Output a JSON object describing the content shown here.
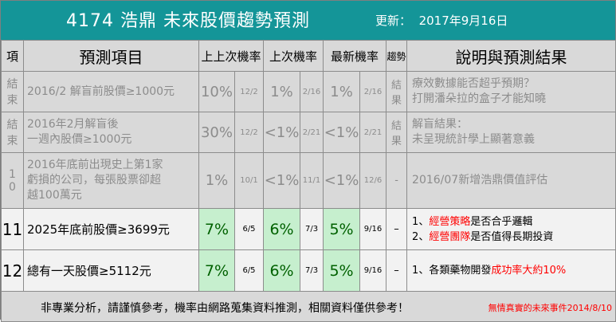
{
  "header": {
    "title": "4174 浩鼎  未來股價趨勢預測",
    "update_label": "更新：",
    "update_date": "2017年9月16日"
  },
  "columns": {
    "item_no": "項",
    "prediction_item": "預測項目",
    "prev_prev_prob": "上上次機率",
    "prev_prob": "上次機率",
    "latest_prob": "最新機率",
    "trend": "趨勢",
    "description": "說明與預測結果"
  },
  "rows": [
    {
      "id": "結束",
      "item": [
        "2016/2 解盲前股價≥1000元"
      ],
      "p1": "10%",
      "d1": "12/2",
      "p2": "1%",
      "d2": "2/16",
      "p3": "1%",
      "d3": "2/16",
      "trend": "結果",
      "desc": [
        "療效數據能否超乎預期？",
        "打開潘朵拉的盒子才能知曉"
      ]
    },
    {
      "id": "結束",
      "item": [
        "2016年2月解盲後",
        "一週內股價≥1000元"
      ],
      "p1": "30%",
      "d1": "12/2",
      "p2": "<1%",
      "d2": "2/21",
      "p3": "<1%",
      "d3": "2/21",
      "trend": "結果",
      "desc": [
        "解盲結果：",
        "未呈現統計學上顯著意義"
      ]
    },
    {
      "id": "10",
      "item": [
        "2016年底前出現史上第1家",
        "虧損的公司，每張股票卻超",
        "越100萬元"
      ],
      "p1": "1%",
      "d1": "10/1",
      "p2": "<1%",
      "d2": "11/1",
      "p3": "<1%",
      "d3": "12/6",
      "trend": "-",
      "desc": [
        "2016/07新增浩鼎價值評估"
      ]
    },
    {
      "id": "11",
      "item": [
        "2025年底前股價≥3699元"
      ],
      "p1": "7%",
      "d1": "6/5",
      "p2": "6%",
      "d2": "7/3",
      "p3": "5%",
      "d3": "9/16",
      "trend": "–",
      "desc1_pre": "1、",
      "desc1_red": "經營策略",
      "desc1_post": "是否合乎邏輯",
      "desc2_pre": "2、",
      "desc2_red": "經營團隊",
      "desc2_post": "是否值得長期投資"
    },
    {
      "id": "12",
      "item": [
        "總有一天股價≥5112元"
      ],
      "p1": "7%",
      "d1": "6/5",
      "p2": "6%",
      "d2": "7/3",
      "p3": "5%",
      "d3": "9/16",
      "trend": "–",
      "desc1_pre": "1、各類藥物開發",
      "desc1_red": "成功率大約10%"
    }
  ],
  "footer": {
    "disclaimer": "非專業分析，請謹慎參考，機率由網路蒐集資料推測，相關資料僅供參考！",
    "credit": "無情真實的未來事件2014/8/10"
  },
  "colors": {
    "title_bg": "#149598",
    "header_bg": "#d9d9d9",
    "ended_text": "#8c8c8c",
    "prob_bg": "#c6efce",
    "prob_text": "#006100",
    "highlight": "#ff0000"
  }
}
